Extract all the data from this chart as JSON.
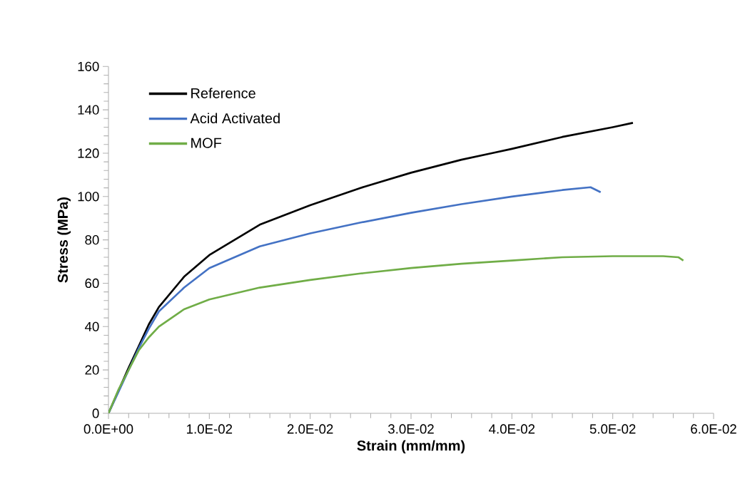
{
  "chart_data": {
    "type": "line",
    "xlabel": "Strain (mm/mm)",
    "ylabel": "Stress (MPa)",
    "xlim": [
      0,
      0.06
    ],
    "ylim": [
      0,
      160
    ],
    "xticks": [
      {
        "value": 0,
        "label": "0.0E+00"
      },
      {
        "value": 0.01,
        "label": "1.0E-02"
      },
      {
        "value": 0.02,
        "label": "2.0E-02"
      },
      {
        "value": 0.03,
        "label": "3.0E-02"
      },
      {
        "value": 0.04,
        "label": "4.0E-02"
      },
      {
        "value": 0.05,
        "label": "5.0E-02"
      },
      {
        "value": 0.06,
        "label": "6.0E-02"
      }
    ],
    "yticks": [
      0,
      20,
      40,
      60,
      80,
      100,
      120,
      140,
      160
    ],
    "grid": false,
    "legend": "top left",
    "marker": "none",
    "line_style": "solid",
    "series": [
      {
        "name": "Reference",
        "color": "#000000",
        "x": [
          0,
          0.002,
          0.003,
          0.004,
          0.005,
          0.0075,
          0.01,
          0.015,
          0.02,
          0.025,
          0.03,
          0.035,
          0.038,
          0.04,
          0.045,
          0.05,
          0.052
        ],
        "values": [
          0,
          21,
          31,
          41,
          49,
          63,
          73,
          87,
          96,
          104,
          111,
          117,
          120,
          122,
          127.5,
          132,
          134
        ]
      },
      {
        "name": "Acid Activated",
        "color": "#4472c4",
        "x": [
          0,
          0.001,
          0.002,
          0.003,
          0.004,
          0.005,
          0.0075,
          0.01,
          0.015,
          0.02,
          0.025,
          0.03,
          0.035,
          0.04,
          0.045,
          0.0478,
          0.0488
        ],
        "values": [
          0,
          10,
          20,
          30,
          39,
          47,
          58,
          67,
          77,
          83,
          88,
          92.5,
          96.5,
          100,
          103,
          104.3,
          102
        ]
      },
      {
        "name": "MOF",
        "color": "#70ad47",
        "x": [
          0,
          0.001,
          0.002,
          0.003,
          0.004,
          0.005,
          0.0075,
          0.01,
          0.015,
          0.02,
          0.025,
          0.03,
          0.035,
          0.04,
          0.045,
          0.05,
          0.055,
          0.0565,
          0.057
        ],
        "values": [
          0,
          11,
          20,
          29,
          35,
          40,
          48,
          52.5,
          58,
          61.5,
          64.5,
          67,
          69,
          70.5,
          72,
          72.5,
          72.5,
          72,
          70.5
        ]
      }
    ]
  }
}
